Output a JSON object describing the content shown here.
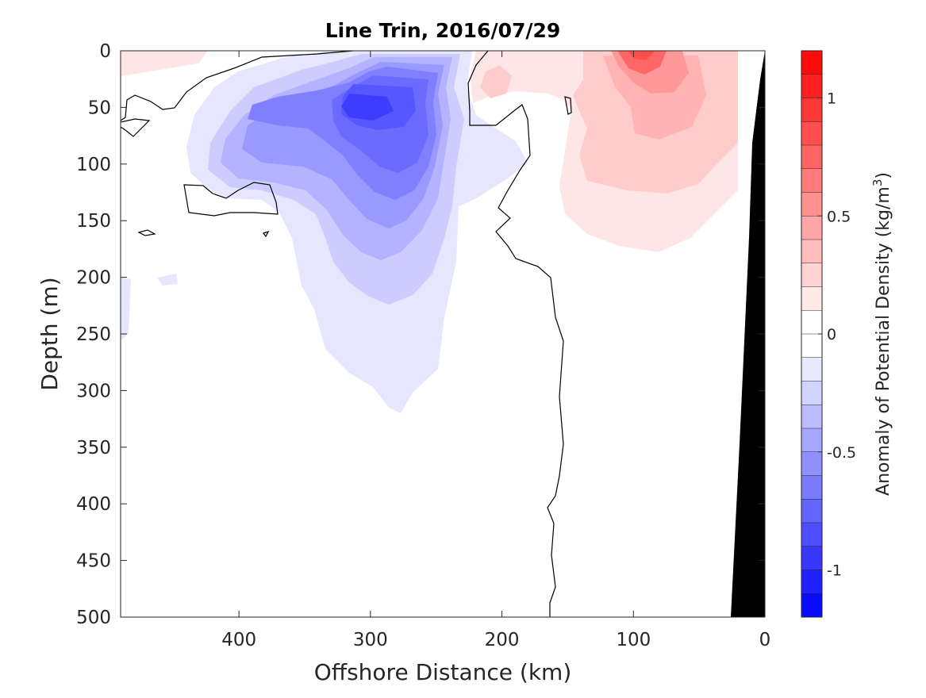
{
  "chart_data": {
    "type": "heatmap",
    "title": "Line Trin, 2016/07/29",
    "xlabel": "Offshore Distance (km)",
    "ylabel": "Depth (m)",
    "xlim": [
      490,
      0
    ],
    "ylim": [
      0,
      500
    ],
    "x_reversed": true,
    "y_reversed": true,
    "x_ticks": [
      400,
      300,
      200,
      100,
      0
    ],
    "x_tick_labels": [
      "400",
      "300",
      "200",
      "100",
      "0"
    ],
    "y_ticks": [
      0,
      50,
      100,
      150,
      200,
      250,
      300,
      350,
      400,
      450,
      500
    ],
    "y_tick_labels": [
      "0",
      "50",
      "100",
      "150",
      "200",
      "250",
      "300",
      "350",
      "400",
      "450",
      "500"
    ],
    "colorbar": {
      "label": "Anomaly of Potential Density (kg/m³)",
      "label_main": "Anomaly of Potential Density (kg/m",
      "label_sup": "3",
      "label_tail": ")",
      "range": [
        -1.2,
        1.2
      ],
      "ticks": [
        1,
        0.5,
        0,
        -0.5,
        -1
      ],
      "tick_labels": [
        "1",
        "0.5",
        "0",
        "-0.5",
        "-1"
      ],
      "levels": 24,
      "negative_color": "#0000ff",
      "positive_color": "#ff0000",
      "neutral_color": "#ffffff"
    },
    "features": [
      {
        "name": "negative anomaly core",
        "x": 305,
        "y": 55,
        "value": -0.95
      },
      {
        "name": "negative anomaly tongue",
        "x": 285,
        "y": 180,
        "value": -0.4
      },
      {
        "name": "negative anomaly deep extent",
        "x": 275,
        "y": 310,
        "value": -0.1
      },
      {
        "name": "positive anomaly core",
        "x": 100,
        "y": 5,
        "value": 0.9
      },
      {
        "name": "positive anomaly",
        "x": 80,
        "y": 100,
        "value": 0.35
      },
      {
        "name": "zero contour",
        "x": 165,
        "y": 300,
        "value": 0
      }
    ],
    "bathymetry_color": "#000000",
    "grid": false
  }
}
